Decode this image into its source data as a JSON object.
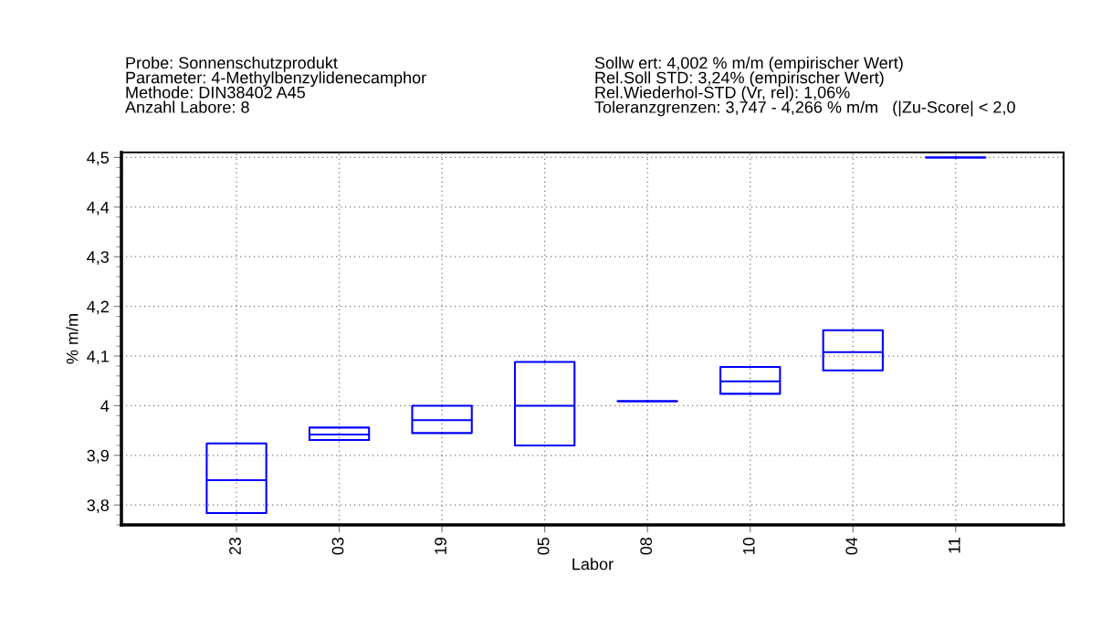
{
  "chart_data": {
    "type": "box",
    "xlabel": "Labor",
    "ylabel": "% m/m",
    "categories": [
      "23",
      "03",
      "19",
      "05",
      "08",
      "10",
      "04",
      "11"
    ],
    "color": "#0000ff",
    "boxes": [
      {
        "low": 3.784,
        "q1": 3.784,
        "median": 3.85,
        "q3": 3.924,
        "high": 3.924
      },
      {
        "low": 3.931,
        "q1": 3.931,
        "median": 3.942,
        "q3": 3.956,
        "high": 3.956
      },
      {
        "low": 3.945,
        "q1": 3.945,
        "median": 3.971,
        "q3": 4.0,
        "high": 4.0
      },
      {
        "low": 3.92,
        "q1": 3.92,
        "median": 4.0,
        "q3": 4.088,
        "high": 4.088
      },
      {
        "low": 4.009,
        "q1": 4.009,
        "median": 4.009,
        "q3": 4.009,
        "high": 4.009
      },
      {
        "low": 4.024,
        "q1": 4.024,
        "median": 4.049,
        "q3": 4.078,
        "high": 4.078
      },
      {
        "low": 4.071,
        "q1": 4.071,
        "median": 4.108,
        "q3": 4.152,
        "high": 4.152
      },
      {
        "low": 4.5,
        "q1": 4.5,
        "median": 4.5,
        "q3": 4.5,
        "high": 4.5
      }
    ],
    "ylim": [
      3.76,
      4.51
    ],
    "yticks": [
      {
        "value": 3.8,
        "label": "3,8"
      },
      {
        "value": 3.9,
        "label": "3,9"
      },
      {
        "value": 4.0,
        "label": "4"
      },
      {
        "value": 4.1,
        "label": "4,1"
      },
      {
        "value": 4.2,
        "label": "4,2"
      },
      {
        "value": 4.3,
        "label": "4,3"
      },
      {
        "value": 4.4,
        "label": "4,4"
      },
      {
        "value": 4.5,
        "label": "4,5"
      }
    ],
    "grid": true,
    "annotations": [
      "Probe: Sonnenschutzprodukt\nParameter: 4-Methylbenzylidenecamphor\nMethode: DIN38402 A45\nAnzahl Labore: 8",
      "Sollw ert: 4,002 % m/m (empirischer Wert)\nRel.Soll STD: 3,24% (empirischer Wert)\nRel.Wiederhol-STD (Vr, rel): 1,06%\nToleranzgrenzen: 3,747 - 4,266 % m/m   (|Zu-Score| < 2,0"
    ]
  }
}
